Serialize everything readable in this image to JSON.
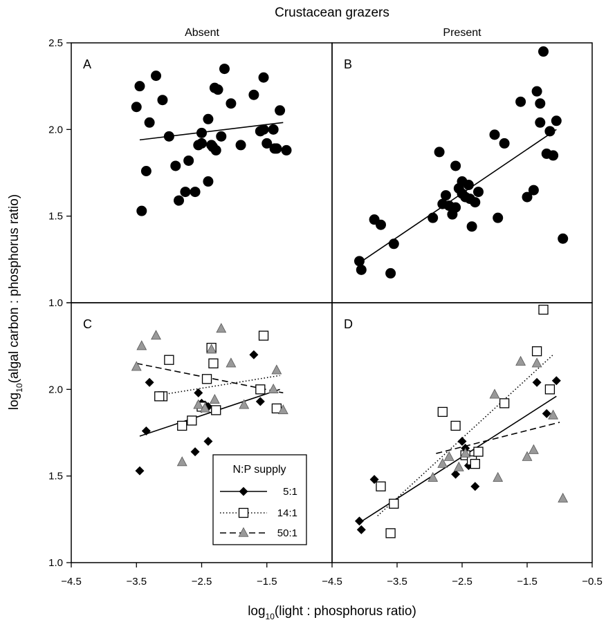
{
  "figure": {
    "title": "Crustacean grazers",
    "column_headers": [
      "Absent",
      "Present"
    ],
    "ylabel": {
      "prefix": "log",
      "sub": "10",
      "rest": "(algal carbon : phosphorus ratio)"
    },
    "xlabel": {
      "prefix": "log",
      "sub": "10",
      "rest": "(light : phosphorus ratio)"
    },
    "legend": {
      "title": "N:P supply",
      "entries": [
        {
          "label": "5:1",
          "marker": "diamond",
          "line": "solid"
        },
        {
          "label": "14:1",
          "marker": "square",
          "line": "dotted"
        },
        {
          "label": "50:1",
          "marker": "triangle",
          "line": "dashed"
        }
      ]
    }
  },
  "chart_data": [
    {
      "panel": "A",
      "type": "scatter",
      "xlim": [
        -4.5,
        -0.5
      ],
      "ylim": [
        1.0,
        2.5
      ],
      "yticks": [
        "1.0",
        "1.5",
        "2.0",
        "2.5"
      ],
      "series": [
        {
          "marker": "circle",
          "color": "#000000",
          "x": [
            -3.5,
            -3.45,
            -3.3,
            -3.2,
            -3.1,
            -3.0,
            -2.9,
            -2.7,
            -2.6,
            -2.55,
            -2.5,
            -2.4,
            -2.35,
            -2.3,
            -2.25,
            -2.2,
            -2.15,
            -2.05,
            -1.9,
            -1.7,
            -1.6,
            -1.55,
            -1.5,
            -1.4,
            -1.35,
            -1.3,
            -1.2,
            -3.42,
            -3.35,
            -2.85,
            -2.75,
            -2.5,
            -2.4,
            -2.33,
            -2.28,
            -1.55,
            -1.38
          ],
          "y": [
            2.13,
            2.25,
            2.04,
            2.31,
            2.17,
            1.96,
            1.79,
            1.82,
            1.64,
            1.91,
            1.98,
            2.06,
            1.91,
            2.24,
            2.23,
            1.96,
            2.35,
            2.15,
            1.91,
            2.2,
            1.99,
            2.3,
            1.92,
            2.0,
            1.89,
            2.11,
            1.88,
            1.53,
            1.76,
            1.59,
            1.64,
            1.92,
            1.7,
            1.9,
            1.88,
            2.0,
            1.89
          ]
        }
      ],
      "fit_lines": [
        {
          "style": "solid",
          "x": [
            -3.45,
            -1.25
          ],
          "y": [
            1.94,
            2.04
          ]
        }
      ]
    },
    {
      "panel": "B",
      "type": "scatter",
      "xlim": [
        -4.5,
        -0.5
      ],
      "ylim": [
        1.0,
        2.5
      ],
      "yticks": [
        "1.0",
        "1.5",
        "2.0",
        "2.5"
      ],
      "series": [
        {
          "marker": "circle",
          "color": "#000000",
          "x": [
            -4.08,
            -4.05,
            -3.85,
            -3.75,
            -3.6,
            -3.55,
            -2.95,
            -2.85,
            -2.8,
            -2.75,
            -2.7,
            -2.65,
            -2.6,
            -2.55,
            -2.5,
            -2.45,
            -2.4,
            -2.35,
            -2.3,
            -2.25,
            -2.0,
            -1.95,
            -1.85,
            -1.6,
            -1.5,
            -1.35,
            -1.3,
            -1.25,
            -1.2,
            -1.15,
            -1.1,
            -1.05,
            -0.95,
            -2.6,
            -2.5,
            -2.38,
            -1.3,
            -1.4
          ],
          "y": [
            1.24,
            1.19,
            1.48,
            1.45,
            1.17,
            1.34,
            1.49,
            1.87,
            1.57,
            1.62,
            1.56,
            1.51,
            1.79,
            1.66,
            1.7,
            1.61,
            1.68,
            1.44,
            1.58,
            1.64,
            1.97,
            1.49,
            1.92,
            2.16,
            1.61,
            2.22,
            2.04,
            2.45,
            1.86,
            1.99,
            1.85,
            2.05,
            1.37,
            1.55,
            1.63,
            1.6,
            2.15,
            1.65
          ]
        }
      ],
      "fit_lines": [
        {
          "style": "solid",
          "x": [
            -4.08,
            -1.05
          ],
          "y": [
            1.23,
            2.0
          ]
        }
      ]
    },
    {
      "panel": "C",
      "type": "scatter",
      "xlim": [
        -4.5,
        -0.5
      ],
      "ylim": [
        1.0,
        2.5
      ],
      "yticks": [
        "1.0",
        "1.5",
        "2.0",
        ""
      ],
      "series": [
        {
          "name": "5:1",
          "marker": "diamond",
          "color": "#000000",
          "x": [
            -3.45,
            -3.35,
            -3.3,
            -2.55,
            -2.5,
            -2.45,
            -2.4,
            -2.5,
            -2.6,
            -2.4,
            -1.7,
            -1.6
          ],
          "y": [
            1.53,
            1.76,
            2.04,
            1.98,
            1.92,
            1.91,
            1.9,
            1.89,
            1.64,
            1.7,
            2.2,
            1.93
          ]
        },
        {
          "name": "14:1",
          "marker": "square",
          "color": "#ffffff",
          "x": [
            -3.1,
            -3.0,
            -3.15,
            -2.8,
            -2.65,
            -2.5,
            -2.42,
            -2.35,
            -2.32,
            -2.28,
            -1.55,
            -1.6,
            -1.35
          ],
          "y": [
            1.96,
            2.17,
            1.96,
            1.79,
            1.82,
            1.9,
            2.06,
            2.24,
            2.15,
            1.88,
            2.31,
            2.0,
            1.89
          ]
        },
        {
          "name": "50:1",
          "marker": "triangle",
          "color": "#999999",
          "x": [
            -3.5,
            -3.42,
            -3.2,
            -2.8,
            -2.55,
            -2.45,
            -2.35,
            -2.3,
            -2.2,
            -2.05,
            -1.85,
            -1.4,
            -1.35,
            -1.25
          ],
          "y": [
            2.13,
            2.25,
            2.31,
            1.58,
            1.91,
            1.89,
            2.23,
            1.94,
            2.35,
            2.15,
            1.91,
            2.0,
            2.11,
            1.88
          ]
        }
      ],
      "fit_lines": [
        {
          "series": "5:1",
          "style": "solid",
          "x": [
            -3.45,
            -1.3
          ],
          "y": [
            1.73,
            2.0
          ]
        },
        {
          "series": "14:1",
          "style": "dotted",
          "x": [
            -3.1,
            -1.3
          ],
          "y": [
            1.97,
            2.08
          ]
        },
        {
          "series": "50:1",
          "style": "dashed",
          "x": [
            -3.5,
            -1.25
          ],
          "y": [
            2.15,
            1.98
          ]
        }
      ]
    },
    {
      "panel": "D",
      "type": "scatter",
      "xlim": [
        -4.5,
        -0.5
      ],
      "ylim": [
        1.0,
        2.5
      ],
      "yticks": [
        "1.0",
        "1.5",
        "2.0",
        ""
      ],
      "series": [
        {
          "name": "5:1",
          "marker": "diamond",
          "color": "#000000",
          "x": [
            -4.08,
            -4.05,
            -3.85,
            -2.6,
            -2.5,
            -2.45,
            -2.4,
            -2.3,
            -1.35,
            -1.2,
            -1.05
          ],
          "y": [
            1.24,
            1.19,
            1.48,
            1.51,
            1.7,
            1.66,
            1.56,
            1.44,
            2.04,
            1.86,
            2.05
          ]
        },
        {
          "name": "14:1",
          "marker": "square",
          "color": "#ffffff",
          "x": [
            -3.75,
            -3.6,
            -3.55,
            -2.8,
            -2.6,
            -2.45,
            -2.35,
            -2.3,
            -2.25,
            -1.85,
            -1.35,
            -1.25,
            -1.15
          ],
          "y": [
            1.44,
            1.17,
            1.34,
            1.87,
            1.79,
            1.62,
            1.59,
            1.57,
            1.64,
            1.92,
            2.22,
            2.46,
            2.0
          ]
        },
        {
          "name": "50:1",
          "marker": "triangle",
          "color": "#999999",
          "x": [
            -2.95,
            -2.8,
            -2.7,
            -2.55,
            -2.45,
            -2.0,
            -1.95,
            -1.6,
            -1.5,
            -1.4,
            -1.35,
            -1.1,
            -0.95
          ],
          "y": [
            1.49,
            1.57,
            1.61,
            1.55,
            1.63,
            1.97,
            1.49,
            2.16,
            1.61,
            1.65,
            2.15,
            1.85,
            1.37
          ]
        }
      ],
      "fit_lines": [
        {
          "series": "5:1",
          "style": "solid",
          "x": [
            -4.08,
            -1.05
          ],
          "y": [
            1.23,
            1.96
          ]
        },
        {
          "series": "14:1",
          "style": "dotted",
          "x": [
            -3.8,
            -1.1
          ],
          "y": [
            1.27,
            2.2
          ]
        },
        {
          "series": "50:1",
          "style": "dashed",
          "x": [
            -2.9,
            -1.0
          ],
          "y": [
            1.63,
            1.81
          ]
        }
      ]
    }
  ],
  "shared_x_axis": {
    "ticks_left": [
      "−4.5",
      "−3.5",
      "−2.5",
      "−1.5"
    ],
    "ticks_right": [
      "−4.5",
      "−3.5",
      "−2.5",
      "−1.5",
      "−0.5"
    ]
  }
}
